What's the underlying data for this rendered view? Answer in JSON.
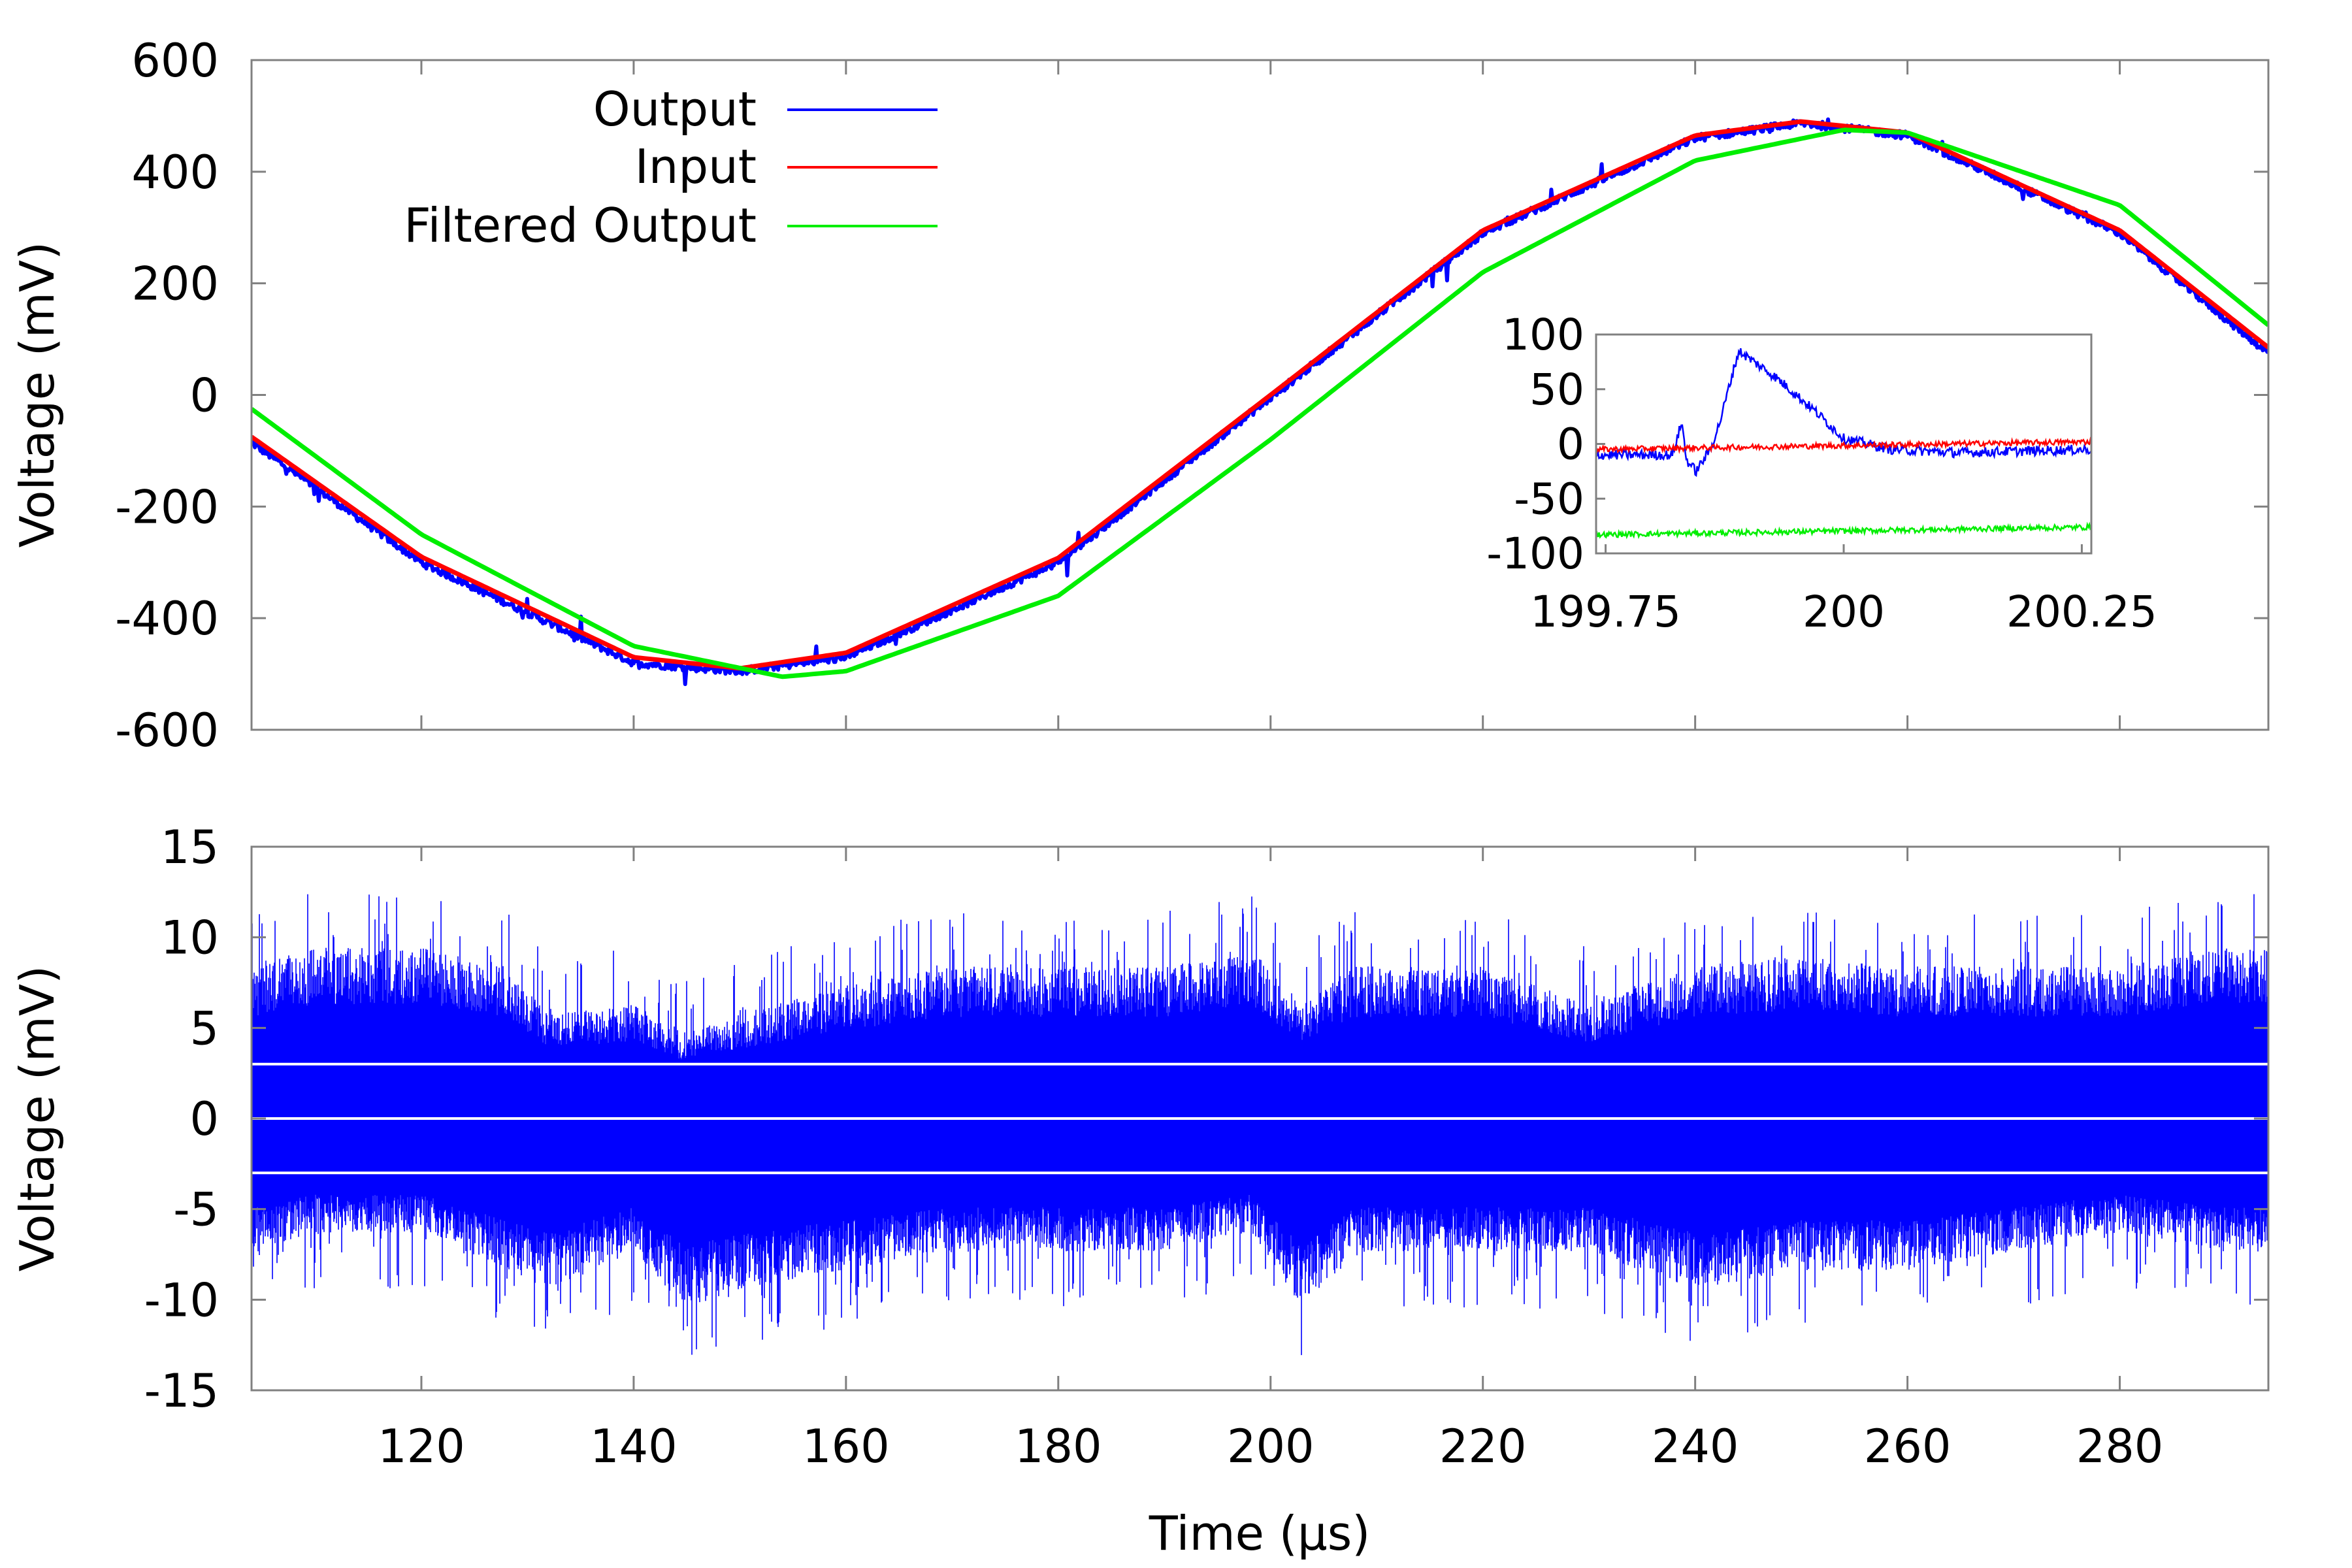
{
  "chart_data": [
    {
      "type": "line",
      "panel": "top",
      "xlabel": "",
      "ylabel": "Voltage (mV)",
      "xlim": [
        104,
        294
      ],
      "ylim": [
        -600,
        600
      ],
      "x_ticks": [
        120,
        140,
        160,
        180,
        200,
        220,
        240,
        260,
        280
      ],
      "y_ticks": [
        -600,
        -400,
        -200,
        0,
        200,
        400,
        600
      ],
      "y_tick_labels": [
        "-600",
        "-400",
        "-200",
        "0",
        "200",
        "400",
        "600"
      ],
      "legend": {
        "placement": "top-left"
      },
      "series": [
        {
          "name": "Output",
          "color": "#0000ff",
          "description": "sine, amplitude ~490 mV, min ~-495 at ~150 µs, max ~487 at ~250 µs, with spikes",
          "x": [
            104,
            120,
            140,
            150,
            160,
            180,
            200,
            220,
            240,
            250,
            260,
            280,
            294
          ],
          "y": [
            -85,
            -300,
            -480,
            -495,
            -470,
            -300,
            -5,
            290,
            460,
            487,
            465,
            290,
            75
          ]
        },
        {
          "name": "Input",
          "color": "#ff0000",
          "x": [
            104,
            120,
            140,
            150,
            160,
            180,
            200,
            220,
            240,
            250,
            260,
            280,
            294
          ],
          "y": [
            -75,
            -290,
            -470,
            -490,
            -462,
            -292,
            0,
            295,
            465,
            490,
            470,
            295,
            85
          ]
        },
        {
          "name": "Filtered Output",
          "color": "#00ee00",
          "x": [
            104,
            120,
            140,
            154,
            160,
            180,
            200,
            220,
            240,
            254,
            260,
            280,
            294
          ],
          "y": [
            -25,
            -250,
            -450,
            -505,
            -495,
            -360,
            -80,
            220,
            420,
            475,
            470,
            340,
            125
          ]
        }
      ]
    },
    {
      "type": "line",
      "panel": "inset",
      "xlim": [
        199.74,
        200.26
      ],
      "ylim": [
        -100,
        100
      ],
      "x_ticks": [
        199.75,
        200,
        200.25
      ],
      "x_tick_labels": [
        "199.75",
        "200",
        "200.25"
      ],
      "y_ticks": [
        -100,
        -50,
        0,
        50,
        100
      ],
      "y_tick_labels": [
        "-100",
        "-50",
        "0",
        "50",
        "100"
      ],
      "series": [
        {
          "name": "Output",
          "color": "#0000ff",
          "x": [
            199.74,
            199.82,
            199.83,
            199.835,
            199.845,
            199.86,
            199.87,
            199.885,
            199.89,
            199.93,
            199.97,
            200.0,
            200.05,
            200.12,
            200.26
          ],
          "y": [
            -10,
            -10,
            20,
            -15,
            -25,
            -5,
            20,
            70,
            85,
            60,
            30,
            5,
            -5,
            -8,
            -5
          ]
        },
        {
          "name": "Input",
          "color": "#ff0000",
          "x": [
            199.74,
            200.26
          ],
          "y": [
            -5,
            2
          ]
        },
        {
          "name": "Filtered Output",
          "color": "#00ee00",
          "x": [
            199.74,
            200.26
          ],
          "y": [
            -83,
            -76
          ]
        }
      ]
    },
    {
      "type": "line",
      "panel": "bottom",
      "xlabel": "Time (µs)",
      "ylabel": "Voltage (mV)",
      "xlim": [
        104,
        294
      ],
      "ylim": [
        -15,
        15
      ],
      "x_ticks": [
        120,
        140,
        160,
        180,
        200,
        220,
        240,
        260,
        280
      ],
      "x_tick_labels": [
        "120",
        "140",
        "160",
        "180",
        "200",
        "220",
        "240",
        "260",
        "280"
      ],
      "y_ticks": [
        -15,
        -10,
        -5,
        0,
        5,
        10,
        15
      ],
      "y_tick_labels": [
        "-15",
        "-10",
        "-5",
        "0",
        "5",
        "10",
        "15"
      ],
      "reference_lines": [
        -3,
        0,
        3
      ],
      "series": [
        {
          "name": "Output",
          "color": "#0000ff",
          "description": "residual noise, dense band ~±8 mV, peaks to ~±14",
          "envelope_x": [
            104,
            110,
            120,
            128,
            132,
            140,
            145,
            150,
            160,
            170,
            180,
            190,
            198,
            203,
            208,
            220,
            230,
            240,
            250,
            260,
            270,
            280,
            290,
            294
          ],
          "envelope_hi": [
            8,
            9,
            9,
            8,
            5.5,
            6,
            4.5,
            5.5,
            7,
            8,
            8,
            8,
            9,
            6,
            8,
            8,
            6,
            8,
            8.5,
            8,
            8,
            8,
            9,
            9
          ],
          "envelope_lo": [
            -7,
            -6,
            -6,
            -8,
            -9,
            -7,
            -10,
            -9,
            -8,
            -7,
            -7,
            -7,
            -6,
            -10,
            -7,
            -7,
            -7,
            -9,
            -8,
            -8,
            -7,
            -6,
            -7,
            -7
          ]
        }
      ]
    }
  ]
}
